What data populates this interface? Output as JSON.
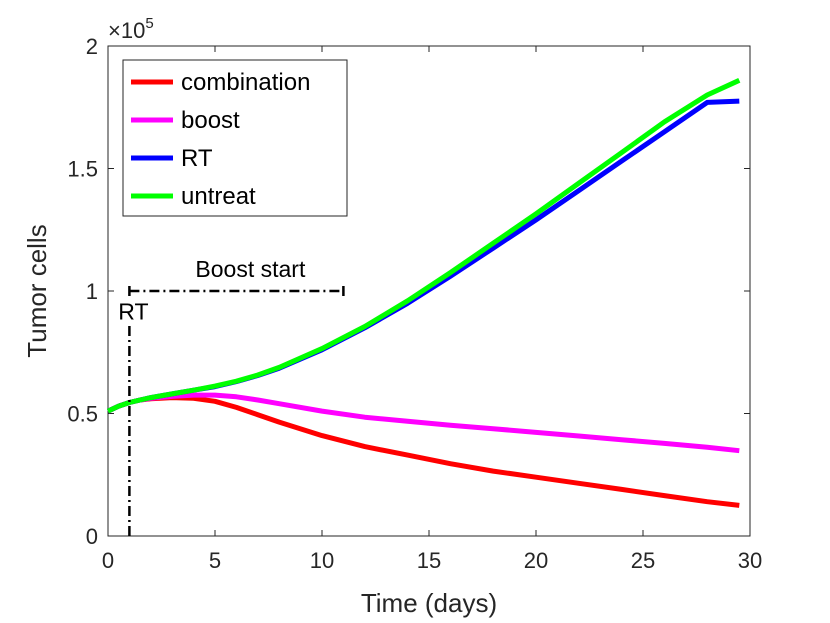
{
  "chart_data": {
    "type": "line",
    "title": "",
    "xlabel": "Time (days)",
    "ylabel": "Tumor cells",
    "xlim": [
      0,
      30
    ],
    "ylim": [
      0,
      2
    ],
    "y_multiplier_label": "×10",
    "y_multiplier_exponent": "5",
    "xticks": [
      0,
      5,
      10,
      15,
      20,
      25,
      30
    ],
    "xtick_labels": [
      "0",
      "5",
      "10",
      "15",
      "20",
      "25",
      "30"
    ],
    "yticks": [
      0,
      0.5,
      1,
      1.5,
      2
    ],
    "ytick_labels": [
      "0",
      "0.5",
      "1",
      "1.5",
      "2"
    ],
    "grid": false,
    "legend_position": "top-left",
    "series": [
      {
        "name": "combination",
        "color": "#ff0000",
        "x": [
          0,
          0.5,
          1,
          1.5,
          2,
          3,
          4,
          5,
          6,
          7,
          8,
          10,
          12,
          14,
          16,
          18,
          20,
          22,
          24,
          26,
          28,
          29.5
        ],
        "y": [
          0.51,
          0.53,
          0.545,
          0.555,
          0.56,
          0.565,
          0.562,
          0.55,
          0.525,
          0.495,
          0.465,
          0.41,
          0.365,
          0.33,
          0.295,
          0.265,
          0.24,
          0.215,
          0.19,
          0.165,
          0.14,
          0.125
        ]
      },
      {
        "name": "boost",
        "color": "#ff00ff",
        "x": [
          0,
          0.5,
          1,
          1.5,
          2,
          3,
          4,
          5,
          6,
          7,
          8,
          10,
          12,
          14,
          16,
          18,
          20,
          22,
          24,
          26,
          28,
          29.5
        ],
        "y": [
          0.51,
          0.53,
          0.545,
          0.555,
          0.562,
          0.57,
          0.575,
          0.575,
          0.568,
          0.555,
          0.54,
          0.51,
          0.485,
          0.468,
          0.452,
          0.438,
          0.423,
          0.408,
          0.393,
          0.378,
          0.362,
          0.348
        ]
      },
      {
        "name": "RT",
        "color": "#0000ff",
        "x": [
          0,
          0.5,
          1,
          1.5,
          2,
          3,
          4,
          5,
          6,
          7,
          8,
          10,
          12,
          14,
          16,
          18,
          20,
          22,
          24,
          26,
          28,
          29.5
        ],
        "y": [
          0.51,
          0.53,
          0.545,
          0.555,
          0.565,
          0.58,
          0.595,
          0.61,
          0.63,
          0.655,
          0.685,
          0.76,
          0.85,
          0.95,
          1.06,
          1.175,
          1.29,
          1.41,
          1.53,
          1.65,
          1.77,
          1.775
        ]
      },
      {
        "name": "untreat",
        "color": "#00ff00",
        "x": [
          0,
          0.5,
          1,
          1.5,
          2,
          3,
          4,
          5,
          6,
          7,
          8,
          10,
          12,
          14,
          16,
          18,
          20,
          22,
          24,
          26,
          28,
          29.5
        ],
        "y": [
          0.51,
          0.53,
          0.545,
          0.555,
          0.565,
          0.58,
          0.595,
          0.612,
          0.632,
          0.657,
          0.688,
          0.765,
          0.855,
          0.96,
          1.075,
          1.195,
          1.315,
          1.44,
          1.565,
          1.69,
          1.8,
          1.86
        ]
      }
    ],
    "annotations": {
      "rt_label": "RT",
      "rt_x": 1,
      "rt_y_range": [
        0,
        0.86
      ],
      "boost_label": "Boost start",
      "boost_x_range": [
        1,
        11
      ],
      "boost_y": 1.0
    }
  }
}
